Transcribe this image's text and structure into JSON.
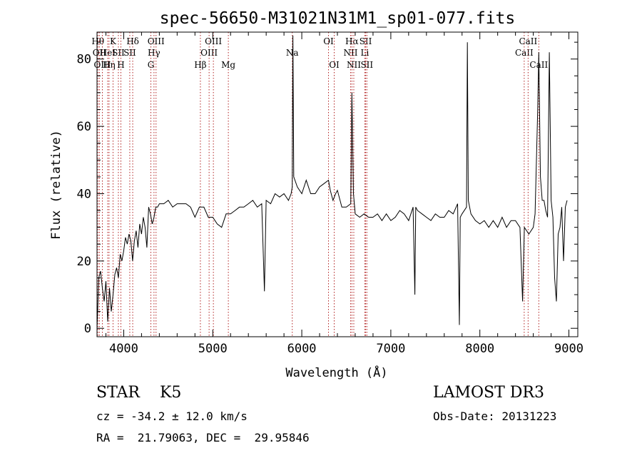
{
  "chart_data": {
    "type": "line",
    "title": "spec-56650-M31021N31M1_sp01-077.fits",
    "xlabel": "Wavelength (Å)",
    "ylabel": "Flux (relative)",
    "xlim": [
      3700,
      9100
    ],
    "ylim": [
      -2.5,
      88
    ],
    "xticks": [
      4000,
      5000,
      6000,
      7000,
      8000,
      9000
    ],
    "yticks": [
      0,
      20,
      40,
      60,
      80
    ],
    "grid": false,
    "line_color": "#000000",
    "marker_color": "#b22222",
    "series": [
      {
        "x": [
          3700,
          3720,
          3740,
          3760,
          3780,
          3800,
          3820,
          3840,
          3860,
          3880,
          3900,
          3920,
          3940,
          3960,
          3980,
          4000,
          4020,
          4040,
          4060,
          4080,
          4100,
          4120,
          4140,
          4160,
          4180,
          4200,
          4220,
          4240,
          4260,
          4280,
          4300,
          4320,
          4340,
          4360,
          4380,
          4400,
          4450,
          4500,
          4550,
          4600,
          4650,
          4700,
          4750,
          4800,
          4850,
          4900,
          4950,
          5000,
          5050,
          5100,
          5150,
          5200,
          5250,
          5300,
          5350,
          5400,
          5450,
          5500,
          5550,
          5580,
          5600,
          5650,
          5700,
          5750,
          5800,
          5850,
          5880,
          5893,
          5900,
          5910,
          5950,
          6000,
          6050,
          6100,
          6150,
          6200,
          6250,
          6300,
          6320,
          6350,
          6380,
          6400,
          6450,
          6500,
          6550,
          6563,
          6580,
          6600,
          6650,
          6700,
          6750,
          6800,
          6850,
          6900,
          6950,
          7000,
          7050,
          7100,
          7150,
          7200,
          7250,
          7270,
          7280,
          7300,
          7350,
          7400,
          7450,
          7500,
          7550,
          7600,
          7650,
          7700,
          7750,
          7770,
          7780,
          7800,
          7850,
          7860,
          7870,
          7900,
          7950,
          8000,
          8050,
          8100,
          8150,
          8200,
          8250,
          8300,
          8350,
          8400,
          8450,
          8480,
          8500,
          8550,
          8600,
          8620,
          8650,
          8662,
          8680,
          8700,
          8720,
          8740,
          8760,
          8780,
          8800,
          8820,
          8840,
          8860,
          8880,
          8900,
          8920,
          8940,
          8960,
          8980
        ],
        "values": [
          0,
          15,
          17,
          12,
          8,
          14,
          2,
          12,
          5,
          10,
          16,
          18,
          15,
          22,
          20,
          23,
          27,
          25,
          28,
          26,
          20,
          26,
          29,
          24,
          31,
          28,
          33,
          30,
          24,
          36,
          34,
          31,
          33,
          36,
          36,
          37,
          37,
          38,
          36,
          37,
          37,
          37,
          36,
          33,
          36,
          36,
          33,
          33,
          31,
          30,
          34,
          34,
          35,
          36,
          36,
          37,
          38,
          36,
          37,
          11,
          38,
          37,
          40,
          39,
          40,
          38,
          40,
          42,
          87,
          45,
          42,
          40,
          44,
          40,
          40,
          42,
          43,
          44,
          41,
          38,
          40,
          41,
          36,
          36,
          37,
          70,
          40,
          34,
          33,
          34,
          33,
          33,
          34,
          32,
          34,
          32,
          33,
          35,
          34,
          32,
          36,
          10,
          36,
          35,
          34,
          33,
          32,
          34,
          33,
          33,
          35,
          34,
          37,
          1,
          33,
          34,
          36,
          85,
          38,
          34,
          32,
          31,
          32,
          30,
          32,
          30,
          33,
          30,
          32,
          32,
          30,
          8,
          30,
          28,
          30,
          34,
          65,
          82,
          45,
          38,
          38,
          35,
          33,
          82,
          38,
          33,
          15,
          8,
          28,
          30,
          36,
          20,
          36,
          38
        ]
      }
    ],
    "line_markers": [
      {
        "label": "Hθ",
        "x": 3710,
        "row": 1
      },
      {
        "label": "OII",
        "x": 3727,
        "row": 2
      },
      {
        "label": "OIII",
        "x": 3760,
        "row": 3
      },
      {
        "label": "HeI",
        "x": 3820,
        "row": 2
      },
      {
        "label": "Hη",
        "x": 3835,
        "row": 3
      },
      {
        "label": "K",
        "x": 3880,
        "row": 1
      },
      {
        "label": "SII",
        "x": 3940,
        "row": 2
      },
      {
        "label": "H",
        "x": 3968,
        "row": 3
      },
      {
        "label": "Hδ",
        "x": 4101,
        "row": 1
      },
      {
        "label": "SII",
        "x": 4068,
        "row": 2
      },
      {
        "label": "G",
        "x": 4305,
        "row": 3
      },
      {
        "label": "Hγ",
        "x": 4340,
        "row": 2
      },
      {
        "label": "OIII",
        "x": 4363,
        "row": 1
      },
      {
        "label": "Hβ",
        "x": 4861,
        "row": 3
      },
      {
        "label": "OIII",
        "x": 4959,
        "row": 2
      },
      {
        "label": "OIII",
        "x": 5007,
        "row": 1
      },
      {
        "label": "Mg",
        "x": 5175,
        "row": 3
      },
      {
        "label": "Na",
        "x": 5893,
        "row": 2
      },
      {
        "label": "OI",
        "x": 6300,
        "row": 1
      },
      {
        "label": "OI",
        "x": 6364,
        "row": 3
      },
      {
        "label": "NII",
        "x": 6548,
        "row": 2
      },
      {
        "label": "Hα",
        "x": 6563,
        "row": 1
      },
      {
        "label": "NII",
        "x": 6584,
        "row": 3
      },
      {
        "label": "SII",
        "x": 6717,
        "row": 1
      },
      {
        "label": "Li",
        "x": 6708,
        "row": 2
      },
      {
        "label": "SII",
        "x": 6731,
        "row": 3
      },
      {
        "label": "CaII",
        "x": 8498,
        "row": 2
      },
      {
        "label": "CaII",
        "x": 8542,
        "row": 1
      },
      {
        "label": "CaII",
        "x": 8662,
        "row": 3
      }
    ]
  },
  "info": {
    "star_type": "STAR    K5",
    "cz": "cz = -34.2 ± 12.0 km/s",
    "radec": "RA =  21.79063, DEC =  29.95846",
    "survey": "LAMOST DR3",
    "obs_date": "Obs-Date: 20131223"
  }
}
